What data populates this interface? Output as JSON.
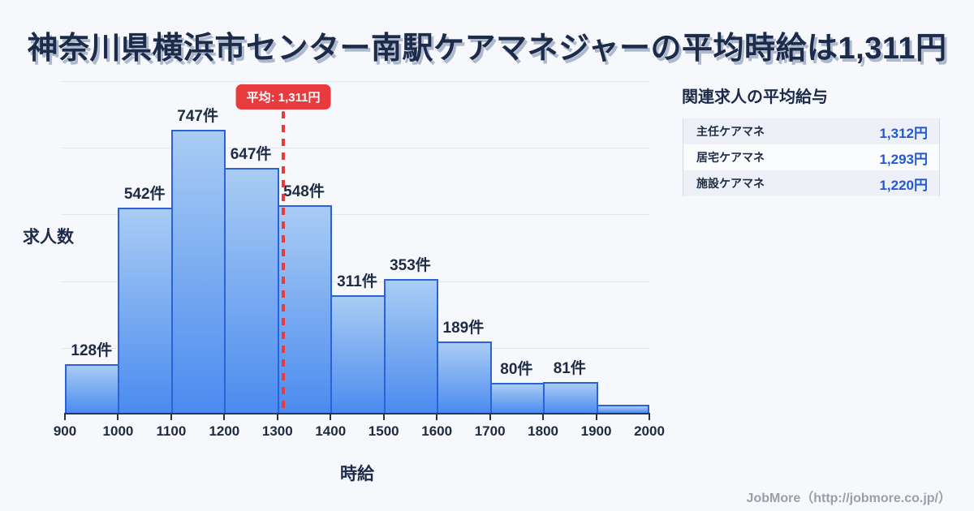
{
  "title": "神奈川県横浜市センター南駅ケアマネジャーの平均時給は1,311円",
  "chart_data": {
    "type": "bar",
    "title": "神奈川県横浜市センター南駅ケアマネジャーの平均時給は1,311円",
    "xlabel": "時給",
    "ylabel": "求人数",
    "x_ticks": [
      "900",
      "1000",
      "1100",
      "1200",
      "1300",
      "1400",
      "1500",
      "1600",
      "1700",
      "1800",
      "1900",
      "2000"
    ],
    "x_range": [
      900,
      2000
    ],
    "bin_width": 100,
    "values": [
      128,
      542,
      747,
      647,
      548,
      311,
      353,
      189,
      80,
      81,
      22
    ],
    "bar_labels": [
      "128件",
      "542件",
      "747件",
      "647件",
      "548件",
      "311件",
      "353件",
      "189件",
      "80件",
      "81件",
      ""
    ],
    "ylim": [
      0,
      880
    ],
    "grid": true,
    "grid_divisions": 5,
    "legend": "none",
    "average": {
      "value": 1311,
      "label": "平均: 1,311円"
    }
  },
  "side_panel": {
    "title": "関連求人の平均給与",
    "rows": [
      {
        "label": "主任ケアマネ",
        "value": "1,312円"
      },
      {
        "label": "居宅ケアマネ",
        "value": "1,293円"
      },
      {
        "label": "施設ケアマネ",
        "value": "1,220円"
      }
    ]
  },
  "footer": {
    "credit": "JobMore（http://jobmore.co.jp/）"
  },
  "colors": {
    "background": "#f7f8fb",
    "title_text": "#1d2b4a",
    "bar_gradient_top": "#a9ccf4",
    "bar_gradient_bottom": "#4b8bef",
    "bar_border": "#2a62d9",
    "gridline": "#e2e5ec",
    "axis": "#2f3540",
    "average_red": "#e83b3e",
    "value_blue": "#2158d8",
    "table_alt_row": "#edf1f7",
    "credit_gray": "#9aa0a8"
  }
}
